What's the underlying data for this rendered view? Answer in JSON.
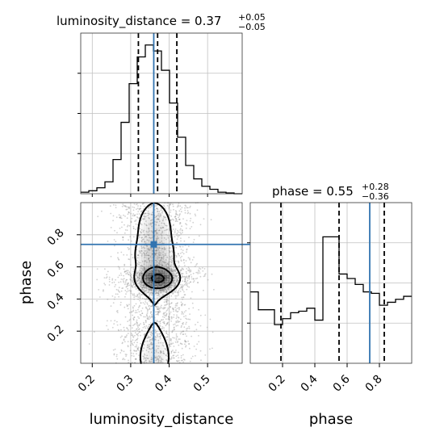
{
  "chart_data": {
    "type": "corner",
    "parameters": [
      "luminosity_distance",
      "phase"
    ],
    "truths": {
      "luminosity_distance": 0.36,
      "phase": 0.74
    },
    "colors": {
      "truth": "#3274b0",
      "hist": "#000000",
      "grid": "#c0c0c0",
      "points": "#9a9a9a"
    },
    "panels": {
      "luminosity_distance": {
        "title": {
          "name": "luminosity_distance = 0.37",
          "plus": "+0.05",
          "minus": "−0.05"
        },
        "xlim": [
          0.17,
          0.59
        ],
        "quantiles": [
          0.32,
          0.37,
          0.42
        ],
        "bins": [
          0.17,
          0.191,
          0.212,
          0.233,
          0.254,
          0.275,
          0.296,
          0.317,
          0.338,
          0.359,
          0.38,
          0.401,
          0.422,
          0.443,
          0.464,
          0.485,
          0.506,
          0.527,
          0.548,
          0.569,
          0.59
        ],
        "counts": [
          0.01,
          0.02,
          0.04,
          0.08,
          0.23,
          0.48,
          0.74,
          0.92,
          1.0,
          0.96,
          0.83,
          0.61,
          0.38,
          0.19,
          0.1,
          0.05,
          0.03,
          0.01,
          0.005,
          0.0
        ]
      },
      "phase": {
        "title": {
          "name": "phase = 0.55",
          "plus": "+0.28",
          "minus": "−0.36"
        },
        "xlim": [
          0.0,
          1.0
        ],
        "quantiles": [
          0.19,
          0.55,
          0.83
        ],
        "bins": [
          0.0,
          0.05,
          0.1,
          0.15,
          0.2,
          0.25,
          0.3,
          0.35,
          0.4,
          0.45,
          0.5,
          0.55,
          0.6,
          0.65,
          0.7,
          0.75,
          0.8,
          0.85,
          0.9,
          0.95,
          1.0
        ],
        "counts": [
          0.48,
          0.36,
          0.36,
          0.26,
          0.3,
          0.34,
          0.35,
          0.37,
          0.29,
          0.85,
          0.85,
          0.6,
          0.57,
          0.53,
          0.48,
          0.47,
          0.39,
          0.41,
          0.43,
          0.45
        ]
      }
    },
    "joint": {
      "xlim": [
        0.17,
        0.59
      ],
      "ylim": [
        0.0,
        1.0
      ],
      "levels": [
        0.39,
        0.86,
        1.39,
        2.0
      ]
    },
    "axes": {
      "x_ticks_ld": [
        "0.2",
        "0.3",
        "0.4",
        "0.5"
      ],
      "x_ticks_phase": [
        "0.2",
        "0.4",
        "0.6",
        "0.8"
      ],
      "y_ticks_phase": [
        "0.2",
        "0.4",
        "0.6",
        "0.8"
      ],
      "xlabel_left": "luminosity_distance",
      "xlabel_right": "phase",
      "ylabel": "phase"
    }
  }
}
